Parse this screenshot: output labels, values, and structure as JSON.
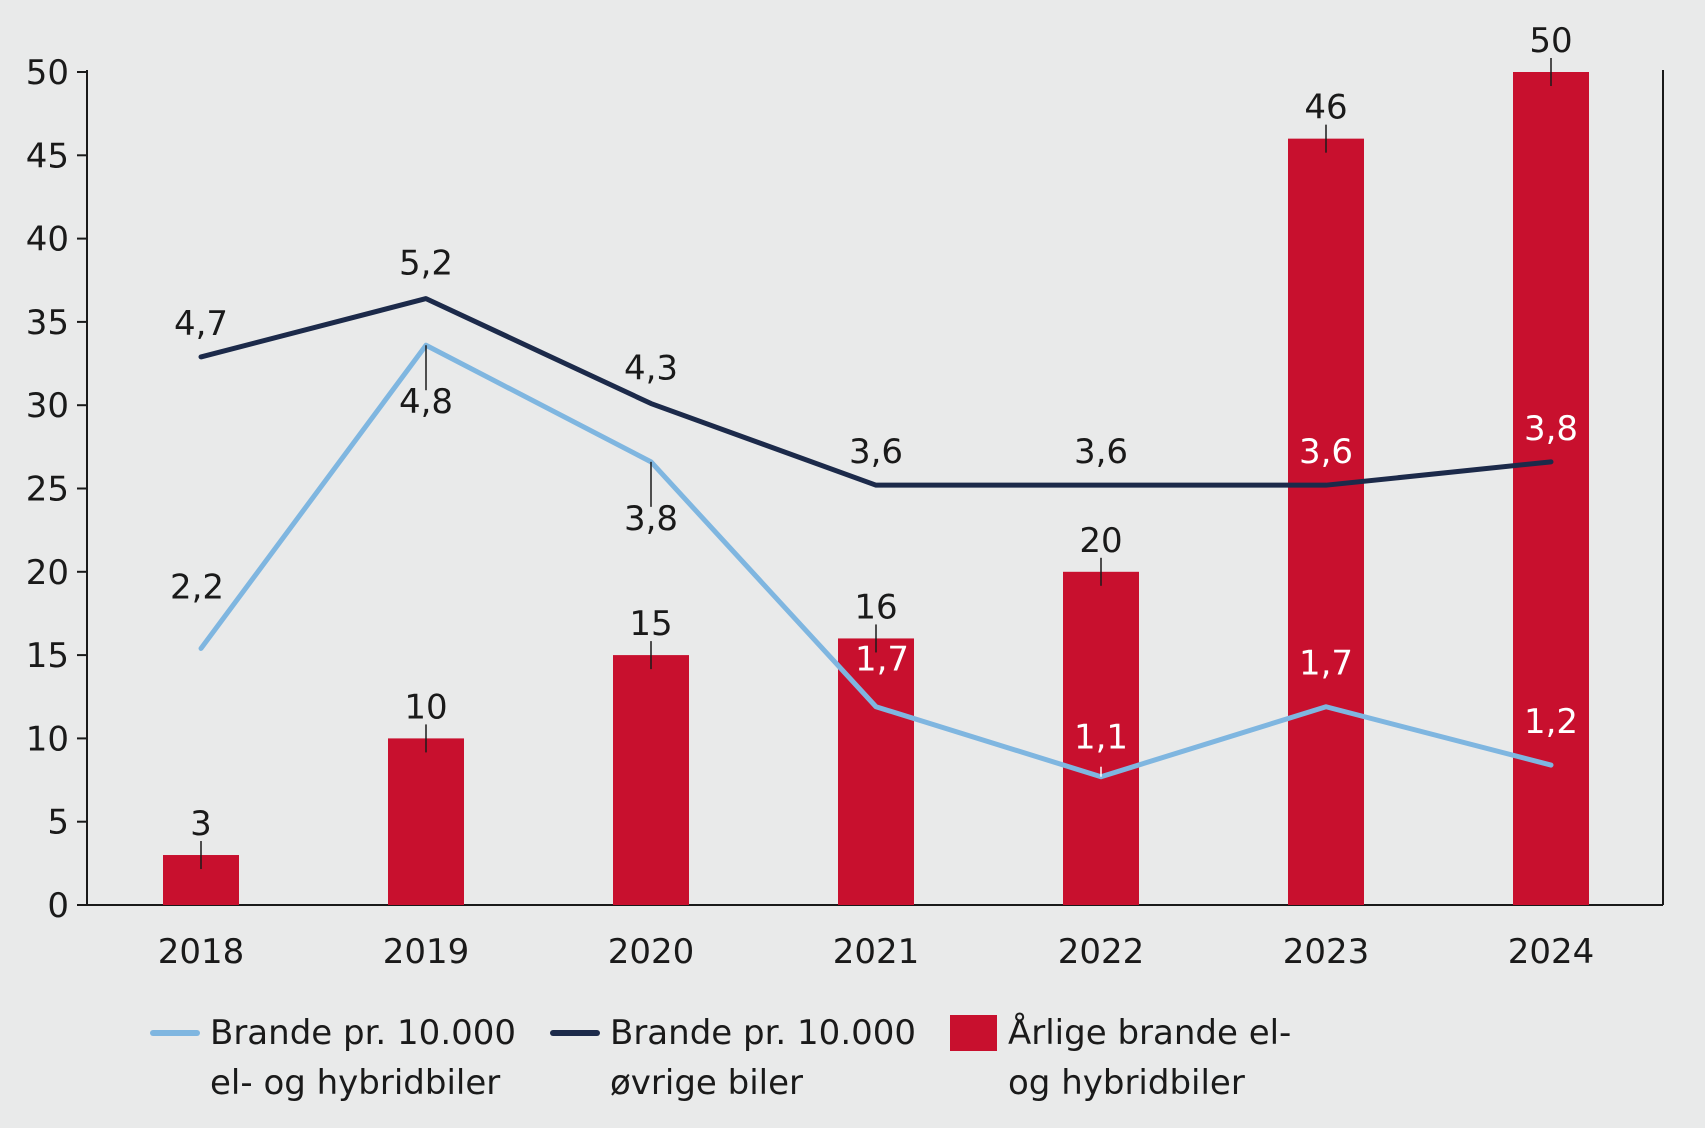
{
  "chart_data": {
    "type": "bar",
    "categories": [
      "2018",
      "2019",
      "2020",
      "2021",
      "2022",
      "2023",
      "2024"
    ],
    "ylim": [
      0,
      50
    ],
    "yticks": [
      "0",
      "5",
      "10",
      "15",
      "20",
      "25",
      "30",
      "35",
      "40",
      "45",
      "50"
    ],
    "grid": false,
    "legend_position": "bottom",
    "series": [
      {
        "name": "Brande pr. 10.000 el- og hybridbiler",
        "kind": "line",
        "color": "#7fb6e0",
        "values": [
          2.2,
          4.8,
          3.8,
          1.7,
          1.1,
          1.7,
          1.2
        ],
        "value_labels": [
          "2,2",
          "4,8",
          "3,8",
          "1,7",
          "1,1",
          "1,7",
          "1,2"
        ]
      },
      {
        "name": "Brande pr. 10.000 øvrige biler",
        "kind": "line",
        "color": "#1c2a4a",
        "values": [
          4.7,
          5.2,
          4.3,
          3.6,
          3.6,
          3.6,
          3.8
        ],
        "value_labels": [
          "4,7",
          "5,2",
          "4,3",
          "3,6",
          "3,6",
          "3,6",
          "3,8"
        ]
      },
      {
        "name": "Årlige brande el- og hybridbiler",
        "kind": "bar",
        "color": "#c8102e",
        "values": [
          3,
          10,
          15,
          16,
          20,
          46,
          50
        ],
        "value_labels": [
          "3",
          "10",
          "15",
          "16",
          "20",
          "46",
          "50"
        ]
      }
    ]
  },
  "legend": {
    "items": [
      {
        "label": "Brande pr. 10.000\nel- og hybridbiler",
        "kind": "line",
        "color": "#7fb6e0"
      },
      {
        "label": "Brande pr. 10.000\nøvrige biler",
        "kind": "line",
        "color": "#1c2a4a"
      },
      {
        "label": "Årlige brande el-\nog hybridbiler",
        "kind": "box",
        "color": "#c8102e"
      }
    ]
  }
}
